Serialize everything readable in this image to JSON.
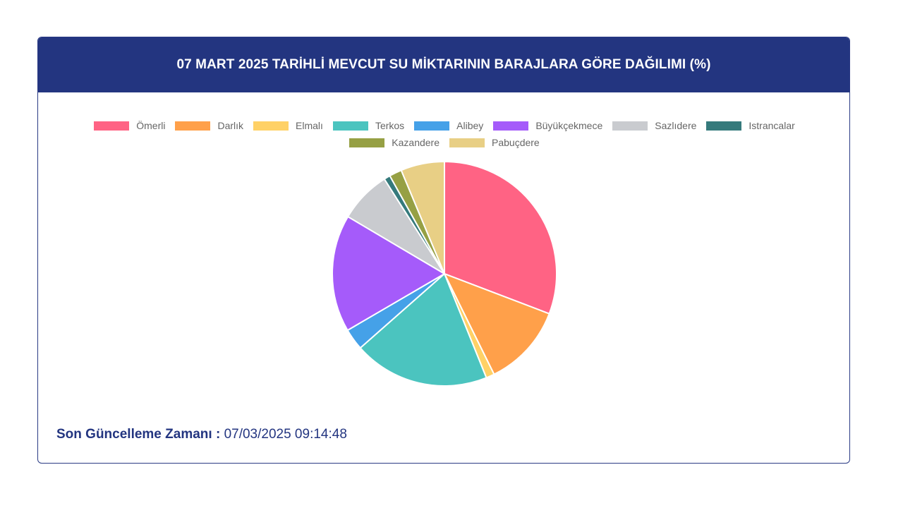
{
  "header": {
    "title": "07 MART 2025 TARİHLİ MEVCUT SU MİKTARININ BARAJLARA GÖRE DAĞILIMI (%)"
  },
  "legend_rows": [
    [
      0,
      1,
      2,
      3,
      4,
      5,
      6,
      7
    ],
    [
      8,
      9
    ]
  ],
  "chart_data": {
    "type": "pie",
    "title": "07 MART 2025 TARİHLİ MEVCUT SU MİKTARININ BARAJLARA GÖRE DAĞILIMI (%)",
    "categories": [
      "Ömerli",
      "Darlık",
      "Elmalı",
      "Terkos",
      "Alibey",
      "Büyükçekmece",
      "Sazlıdere",
      "Istrancalar",
      "Kazandere",
      "Pabuçdere"
    ],
    "values": [
      30.8,
      11.9,
      1.2,
      19.6,
      3.1,
      16.9,
      7.5,
      0.9,
      1.8,
      6.3
    ],
    "colors": [
      "#ff6384",
      "#ffa04a",
      "#ffd166",
      "#4bc4bf",
      "#45a1e8",
      "#a55bfa",
      "#c9cbcf",
      "#357a7c",
      "#96a044",
      "#e8cf85"
    ],
    "legend_position": "top",
    "grid": false
  },
  "footer": {
    "label": "Son Güncelleme Zamanı :",
    "value": "07/03/2025 09:14:48"
  }
}
